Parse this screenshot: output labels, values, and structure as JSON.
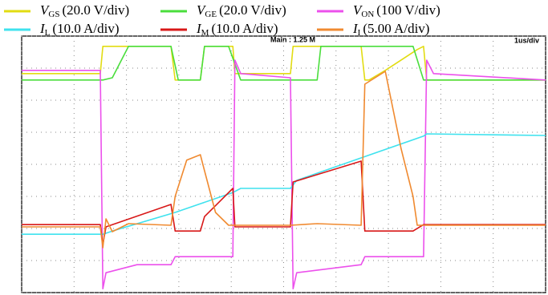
{
  "chart_data": {
    "type": "line",
    "annotations": [
      "Main : 1.25 M",
      "1us/div"
    ],
    "xlim": [
      0,
      10
    ],
    "ylim": [
      -4,
      4
    ],
    "xticks": [
      0,
      1,
      2,
      3,
      4,
      5,
      6,
      7,
      8,
      9,
      10
    ],
    "yticks": [
      -4,
      -3,
      -2,
      -1,
      0,
      1,
      2,
      3,
      4
    ],
    "grid": true,
    "series": [
      {
        "name": "V",
        "sub": "GS",
        "scale": "(20.0 V/div)",
        "color": "#e2dc12",
        "x": [
          0,
          1.5,
          1.55,
          2.85,
          2.93,
          3.41,
          3.49,
          4.03,
          4.07,
          5.13,
          5.18,
          6.48,
          6.55,
          6.63,
          6.94,
          7.55,
          7.67,
          7.73,
          10
        ],
        "values": [
          2.83,
          2.83,
          3.68,
          3.68,
          2.63,
          2.63,
          3.68,
          3.68,
          2.83,
          2.83,
          3.68,
          3.68,
          2.63,
          2.63,
          2.93,
          3.58,
          3.68,
          2.63,
          2.63
        ]
      },
      {
        "name": "V",
        "sub": "GE",
        "scale": "(20.0 V/div)",
        "color": "#4ade3c",
        "x": [
          0,
          1.55,
          1.73,
          2.04,
          2.85,
          2.99,
          3.41,
          3.49,
          3.95,
          4.18,
          5.64,
          5.71,
          7.47,
          7.67,
          10
        ],
        "values": [
          2.63,
          2.63,
          2.7,
          3.68,
          3.68,
          2.63,
          2.63,
          3.68,
          3.68,
          2.63,
          2.63,
          3.68,
          3.68,
          2.63,
          2.63
        ]
      },
      {
        "name": "V",
        "sub": "ON",
        "scale": "(100 V/div)",
        "color": "#ec50ec",
        "x": [
          0,
          1.5,
          1.55,
          1.61,
          2.2,
          2.85,
          2.93,
          4.03,
          4.07,
          4.18,
          5.13,
          5.18,
          5.25,
          6.48,
          6.55,
          7.67,
          7.73,
          7.86,
          10
        ],
        "values": [
          2.93,
          2.93,
          -3.88,
          -3.38,
          -3.13,
          -3.13,
          -2.88,
          -2.88,
          3.25,
          2.83,
          2.7,
          -3.88,
          -3.38,
          -3.13,
          -2.88,
          -2.88,
          3.25,
          2.83,
          2.63
        ]
      },
      {
        "name": "I",
        "sub": "L",
        "scale": "(10.0 A/div)",
        "color": "#3fe2ee",
        "x": [
          0,
          1.55,
          1.73,
          2.93,
          4.03,
          4.18,
          5.13,
          5.25,
          7.67,
          7.73,
          10
        ],
        "values": [
          -2.18,
          -2.18,
          -2.08,
          -1.5,
          -0.88,
          -0.75,
          -0.75,
          -0.5,
          0.88,
          0.95,
          0.9
        ]
      },
      {
        "name": "I",
        "sub": "M",
        "scale": "(10.0 A/div)",
        "color": "#d81818",
        "x": [
          0,
          1.5,
          1.55,
          1.61,
          2.85,
          2.93,
          3.41,
          3.49,
          4.03,
          4.07,
          5.13,
          5.18,
          6.48,
          6.55,
          7.47,
          7.67,
          10
        ],
        "values": [
          -1.88,
          -1.88,
          -2.5,
          -1.95,
          -1.25,
          -2.08,
          -2.08,
          -1.63,
          -0.75,
          -1.95,
          -1.95,
          -0.55,
          0.1,
          -2.08,
          -2.08,
          -1.88,
          -1.88
        ]
      },
      {
        "name": "I",
        "sub": "I",
        "scale": "(5.00 A/div)",
        "color": "#f08a30",
        "x": [
          0,
          1.5,
          1.55,
          1.61,
          1.73,
          2.04,
          2.85,
          2.93,
          3.15,
          3.41,
          3.49,
          3.7,
          3.95,
          4.07,
          5.13,
          5.64,
          6.48,
          6.55,
          6.94,
          7.24,
          7.47,
          7.55,
          10
        ],
        "values": [
          -1.95,
          -1.95,
          -2.6,
          -1.7,
          -2.1,
          -1.85,
          -1.9,
          -1.0,
          0.13,
          0.3,
          -0.2,
          -1.5,
          -1.9,
          -1.9,
          -1.9,
          -1.85,
          -1.9,
          2.5,
          2.9,
          0.5,
          -1.0,
          -1.9,
          -1.9
        ]
      }
    ]
  }
}
